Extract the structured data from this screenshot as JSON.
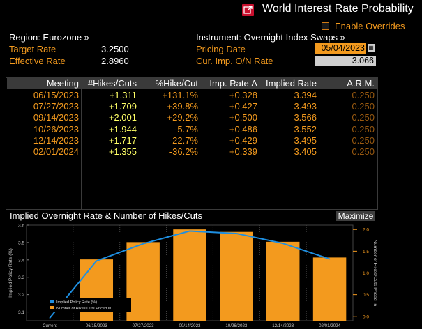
{
  "window": {
    "title": "World Interest Rate Probability"
  },
  "overrides": {
    "label": "Enable Overrides"
  },
  "info": {
    "region_label": "Region: Eurozone »",
    "target_rate_label": "Target Rate",
    "target_rate_value": "3.2500",
    "effective_rate_label": "Effective Rate",
    "effective_rate_value": "2.8960",
    "instrument_label": "Instrument: Overnight Index Swaps »",
    "pricing_date_label": "Pricing Date",
    "pricing_date_value": "05/04/2023",
    "cur_imp_label": "Cur. Imp. O/N Rate",
    "cur_imp_value": "3.066"
  },
  "table": {
    "headers": [
      "Meeting",
      "#Hikes/Cuts",
      "%Hike/Cut",
      "Imp. Rate Δ",
      "Implied Rate",
      "A.R.M."
    ],
    "rows": [
      [
        "06/15/2023",
        "+1.311",
        "+131.1%",
        "+0.328",
        "3.394",
        "0.250"
      ],
      [
        "07/27/2023",
        "+1.709",
        "+39.8%",
        "+0.427",
        "3.493",
        "0.250"
      ],
      [
        "09/14/2023",
        "+2.001",
        "+29.2%",
        "+0.500",
        "3.566",
        "0.250"
      ],
      [
        "10/26/2023",
        "+1.944",
        "-5.7%",
        "+0.486",
        "3.552",
        "0.250"
      ],
      [
        "12/14/2023",
        "+1.717",
        "-22.7%",
        "+0.429",
        "3.495",
        "0.250"
      ],
      [
        "02/01/2024",
        "+1.355",
        "-36.2%",
        "+0.339",
        "3.405",
        "0.250"
      ]
    ]
  },
  "chart_section": {
    "title": "Implied Overnight Rate & Number of Hikes/Cuts",
    "maximize_label": "Maximize"
  },
  "colors": {
    "orange": "#f39a1e",
    "blue": "#1e8fe1",
    "yellow": "#ffff66",
    "header_gray": "#3a3a3a",
    "red_icon": "#c8102e"
  },
  "chart_data": {
    "type": "bar",
    "categories": [
      "Current",
      "06/15/2023",
      "07/27/2023",
      "09/14/2023",
      "10/26/2023",
      "12/14/2023",
      "02/01/2024"
    ],
    "series": [
      {
        "name": "Implied Policy Rate (%)",
        "type": "line",
        "axis": "left",
        "values": [
          3.066,
          3.394,
          3.493,
          3.566,
          3.552,
          3.495,
          3.405
        ]
      },
      {
        "name": "Number of Hikes/Cuts Priced In",
        "type": "bar",
        "axis": "right",
        "values": [
          null,
          1.311,
          1.709,
          2.001,
          1.944,
          1.717,
          1.355
        ]
      }
    ],
    "ylabel": "Implied Policy Rate (%)",
    "y2label": "Number of Hikes/Cuts Priced In",
    "ylim": [
      3.05,
      3.6
    ],
    "y2lim": [
      -0.1,
      2.1
    ],
    "yticks": [
      "3.6",
      "3.5",
      "3.4",
      "3.3",
      "3.2",
      "3.1"
    ],
    "y2ticks": [
      "2.0",
      "1.5",
      "1.0",
      "0.5",
      "0.0"
    ],
    "legend_position": "bottom-left"
  }
}
